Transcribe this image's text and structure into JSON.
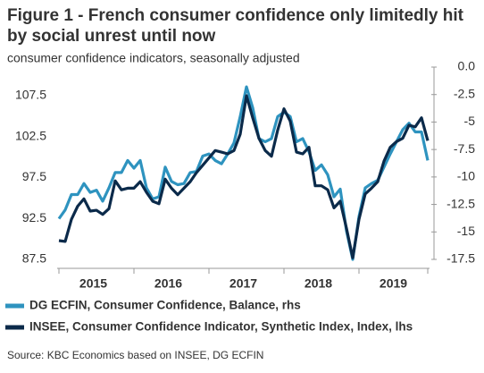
{
  "chart_data": {
    "type": "line",
    "title": "Figure 1 - French consumer confidence only limitedly hit by social unrest until now",
    "subtitle": "consumer confidence indicators, seasonally adjusted",
    "source": "Source: KBC Economics based on INSEE, DG ECFIN",
    "categories": [
      null,
      null,
      null,
      null,
      null,
      "2015",
      null,
      null,
      null,
      null,
      null,
      null,
      null,
      null,
      null,
      null,
      null,
      "2016",
      null,
      null,
      null,
      null,
      null,
      null,
      null,
      null,
      null,
      null,
      null,
      "2017",
      null,
      null,
      null,
      null,
      null,
      null,
      null,
      null,
      null,
      null,
      null,
      "2018",
      null,
      null,
      null,
      null,
      null,
      null,
      null,
      null,
      null,
      null,
      null,
      "2019",
      null,
      null,
      null,
      null,
      null,
      null
    ],
    "series": [
      {
        "name": "DG ECFIN, Consumer Confidence, Balance, rhs",
        "color": "#2e93bf",
        "axis": "y2",
        "values": [
          -13.8,
          -13.0,
          -11.6,
          -11.6,
          -10.6,
          -11.4,
          -11.2,
          -12.2,
          -11.0,
          -9.6,
          -9.6,
          -8.5,
          -9.2,
          -8.5,
          -11.0,
          -12.0,
          -11.8,
          -9.1,
          -10.4,
          -10.7,
          -10.6,
          -9.6,
          -9.5,
          -8.1,
          -7.9,
          -8.5,
          -8.8,
          -7.9,
          -6.9,
          -4.5,
          -1.8,
          -3.7,
          -6.5,
          -6.8,
          -6.5,
          -4.5,
          -4.1,
          -4.5,
          -6.8,
          -6.5,
          -7.7,
          -9.4,
          -8.9,
          -9.8,
          -11.8,
          -11.1,
          -14.9,
          -17.5,
          -13.6,
          -11.0,
          -10.6,
          -10.3,
          -9.1,
          -7.9,
          -6.8,
          -5.7,
          -5.1,
          -5.9,
          -5.9,
          -8.5
        ]
      },
      {
        "name": "INSEE, Consumer Confidence Indicator, Synthetic Index, Index, lhs",
        "color": "#0b2a4a",
        "values": [
          89.8,
          89.7,
          92.4,
          94.0,
          94.9,
          93.4,
          93.5,
          93.0,
          93.7,
          97.1,
          96.0,
          96.2,
          96.2,
          97.0,
          95.7,
          94.6,
          94.3,
          97.3,
          96.2,
          95.4,
          96.2,
          97.0,
          98.1,
          99.0,
          99.9,
          100.8,
          100.6,
          100.4,
          100.8,
          102.8,
          107.5,
          104.8,
          102.3,
          100.8,
          100.1,
          103.3,
          105.9,
          104.4,
          100.6,
          100.4,
          101.2,
          96.5,
          96.5,
          96.0,
          93.8,
          94.6,
          91.3,
          87.7,
          92.4,
          95.5,
          96.2,
          97.0,
          99.5,
          101.2,
          101.9,
          102.3,
          103.9,
          103.7,
          104.8,
          102.0
        ]
      }
    ],
    "ylim": [
      87.5,
      111
    ],
    "yticks": [
      87.5,
      92.5,
      97.5,
      102.5,
      107.5
    ],
    "y2lim": [
      -17.5,
      0
    ],
    "y2ticks": [
      -17.5,
      -15,
      -12.5,
      -10,
      -7.5,
      -5,
      -2.5,
      {
        "value": 0,
        "label": "0.0"
      }
    ],
    "grid": false
  }
}
